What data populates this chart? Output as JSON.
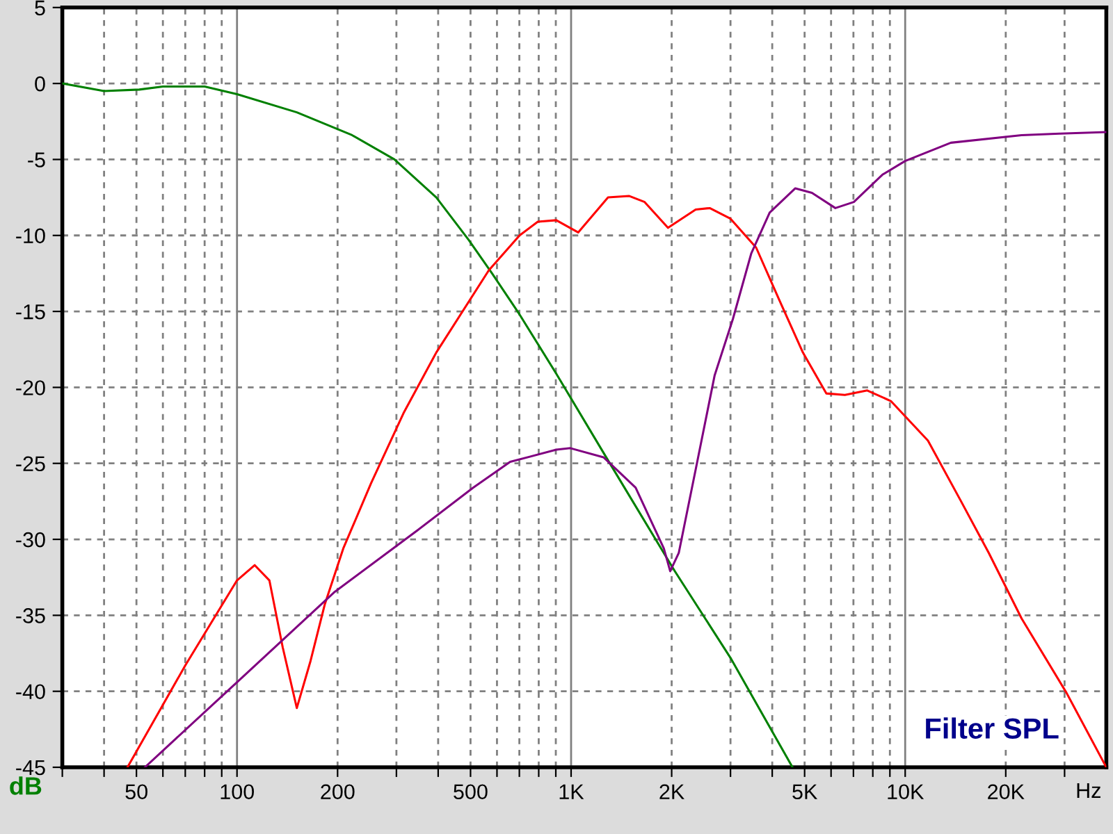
{
  "chart_data": {
    "type": "line",
    "title": "Filter SPL",
    "xlabel": "Hz",
    "ylabel": "dB",
    "log": "x",
    "grid": true,
    "marker": "none",
    "line_style": "solid",
    "xlim": [
      30,
      40000
    ],
    "ylim": [
      -45,
      5
    ],
    "xticks": [
      {
        "value": 30,
        "label": null
      },
      {
        "value": 40,
        "label": null
      },
      50,
      {
        "value": 60,
        "label": null
      },
      {
        "value": 70,
        "label": null
      },
      {
        "value": 80,
        "label": null
      },
      {
        "value": 90,
        "label": null
      },
      100,
      200,
      {
        "value": 300,
        "label": null
      },
      {
        "value": 400,
        "label": null
      },
      500,
      {
        "value": 600,
        "label": null
      },
      {
        "value": 700,
        "label": null
      },
      {
        "value": 800,
        "label": null
      },
      {
        "value": 900,
        "label": null
      },
      {
        "value": 1000,
        "label": "1K"
      },
      {
        "value": 2000,
        "label": "2K"
      },
      {
        "value": 3000,
        "label": null
      },
      {
        "value": 4000,
        "label": null
      },
      {
        "value": 5000,
        "label": "5K"
      },
      {
        "value": 6000,
        "label": null
      },
      {
        "value": 7000,
        "label": null
      },
      {
        "value": 8000,
        "label": null
      },
      {
        "value": 9000,
        "label": null
      },
      {
        "value": 10000,
        "label": "10K"
      },
      {
        "value": 20000,
        "label": "20K"
      },
      {
        "value": 30000,
        "label": null
      }
    ],
    "yticks": [
      5,
      0,
      -5,
      -10,
      -15,
      -20,
      -25,
      -30,
      -35,
      -40,
      -45
    ],
    "series": [
      {
        "color": "#008000",
        "x": [
          30,
          40,
          51,
          60,
          80,
          100,
          151,
          221,
          296,
          395,
          494,
          580,
          701,
          903,
          1290,
          1895,
          2045,
          3000,
          4600
        ],
        "values": [
          0,
          -0.5,
          -0.4,
          -0.2,
          -0.2,
          -0.7,
          -1.9,
          -3.4,
          -5.0,
          -7.5,
          -10.3,
          -12.5,
          -15.2,
          -19.1,
          -24.8,
          -30.9,
          -32.1,
          -37.8,
          -45
        ]
      },
      {
        "color": "#ff0000",
        "x": [
          47,
          70,
          100,
          113,
          125,
          137,
          151,
          166,
          183,
          208,
          252,
          315,
          395,
          567,
          701,
          795,
          903,
          1050,
          1290,
          1490,
          1660,
          1950,
          2360,
          2600,
          3000,
          3580,
          4210,
          4940,
          5810,
          6600,
          7700,
          9060,
          11700,
          14700,
          17800,
          22300,
          30400,
          40000
        ],
        "values": [
          -45,
          -38.3,
          -32.7,
          -31.7,
          -32.7,
          -37.1,
          -41.1,
          -38.0,
          -34.3,
          -30.6,
          -26.3,
          -21.7,
          -17.7,
          -12.3,
          -10.0,
          -9.1,
          -9.0,
          -9.8,
          -7.5,
          -7.4,
          -7.8,
          -9.5,
          -8.3,
          -8.2,
          -8.9,
          -10.8,
          -14.3,
          -17.7,
          -20.4,
          -20.5,
          -20.2,
          -20.9,
          -23.5,
          -27.5,
          -30.9,
          -35.2,
          -40.1,
          -45
        ]
      },
      {
        "color": "#800080",
        "x": [
          53,
          100,
          195,
          347,
          509,
          657,
          903,
          995,
          1250,
          1560,
          1895,
          1980,
          2100,
          2360,
          2690,
          3050,
          3460,
          3930,
          4690,
          5260,
          6180,
          7020,
          8550,
          10000,
          13700,
          22300,
          29000,
          40000
        ],
        "values": [
          -45,
          -39.4,
          -33.5,
          -29.4,
          -26.6,
          -24.9,
          -24.1,
          -24.0,
          -24.6,
          -26.6,
          -30.6,
          -32.1,
          -30.9,
          -25.4,
          -19.2,
          -15.5,
          -11.2,
          -8.5,
          -6.9,
          -7.2,
          -8.2,
          -7.8,
          -6.0,
          -5.1,
          -3.9,
          -3.4,
          -3.3,
          -3.2
        ]
      }
    ]
  }
}
